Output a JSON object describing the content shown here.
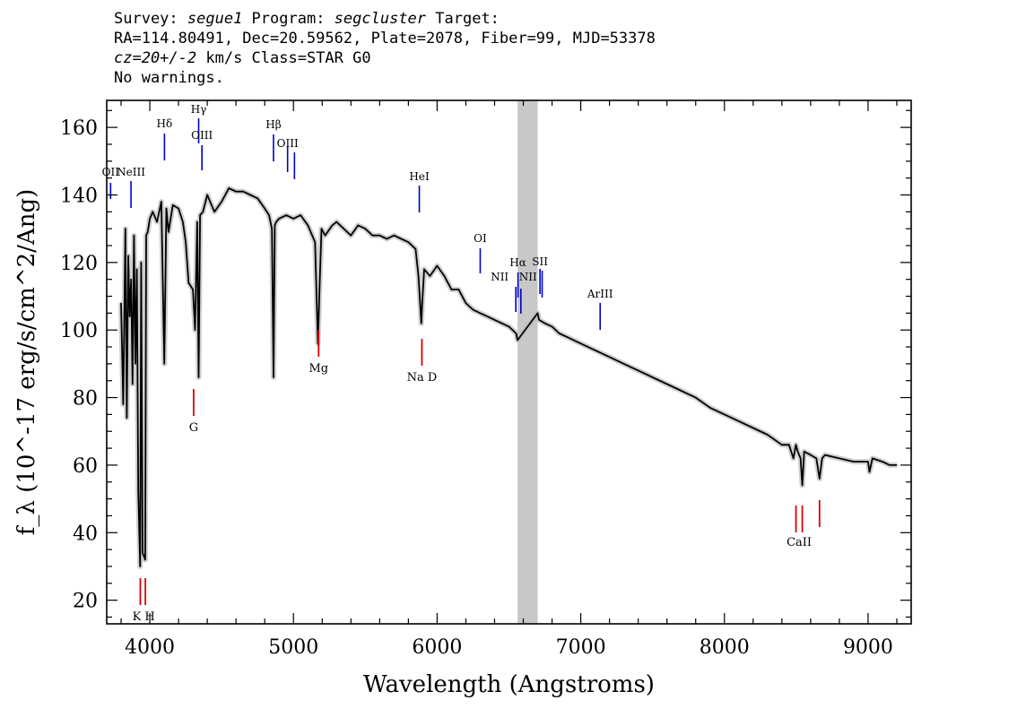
{
  "header": {
    "survey_label": "Survey: ",
    "survey": "segue1",
    "program_label": " Program: ",
    "program": "segcluster",
    "target_label": " Target:",
    "coords": "RA=114.80491, Dec=20.59562, Plate=2078, Fiber=99, MJD=53378",
    "cz": "cz=20+/-2",
    "cz_unit": " km/s ",
    "class": "Class=STAR G0",
    "warnings": "No warnings."
  },
  "chart_data": {
    "type": "line",
    "title": "",
    "xlabel": "Wavelength (Angstroms)",
    "ylabel": "f_λ (10^-17 erg/s/cm^2/Ang)",
    "xlim": [
      3700,
      9300
    ],
    "ylim": [
      13,
      168
    ],
    "xticks": [
      4000,
      5000,
      6000,
      7000,
      8000,
      9000
    ],
    "yticks": [
      20,
      40,
      60,
      80,
      100,
      120,
      140,
      160
    ],
    "grid": false,
    "masked_region": [
      6560,
      6700
    ],
    "series": [
      {
        "color": "#000000",
        "error_color": "#bbbbbb",
        "x": [
          3800,
          3815,
          3830,
          3840,
          3850,
          3860,
          3870,
          3880,
          3890,
          3900,
          3910,
          3920,
          3933,
          3940,
          3950,
          3968,
          3975,
          3985,
          4000,
          4020,
          4050,
          4080,
          4101,
          4115,
          4130,
          4160,
          4200,
          4230,
          4250,
          4270,
          4300,
          4315,
          4330,
          4340,
          4350,
          4370,
          4400,
          4450,
          4500,
          4550,
          4600,
          4650,
          4700,
          4750,
          4800,
          4830,
          4850,
          4861,
          4870,
          4880,
          4900,
          4950,
          5000,
          5050,
          5100,
          5150,
          5170,
          5183,
          5195,
          5220,
          5270,
          5300,
          5350,
          5400,
          5450,
          5500,
          5550,
          5600,
          5650,
          5700,
          5750,
          5800,
          5850,
          5870,
          5890,
          5896,
          5910,
          5950,
          6000,
          6050,
          6100,
          6150,
          6200,
          6250,
          6300,
          6350,
          6400,
          6450,
          6500,
          6550,
          6560,
          6700,
          6710,
          6750,
          6800,
          6850,
          6900,
          7000,
          7100,
          7200,
          7300,
          7400,
          7500,
          7600,
          7700,
          7800,
          7900,
          8000,
          8100,
          8200,
          8300,
          8400,
          8450,
          8480,
          8498,
          8510,
          8530,
          8542,
          8555,
          8600,
          8640,
          8662,
          8680,
          8700,
          8800,
          8900,
          9000,
          9010,
          9030,
          9100,
          9150,
          9200
        ],
        "y": [
          108,
          78,
          130,
          74,
          122,
          104,
          115,
          84,
          128,
          90,
          118,
          52,
          30,
          120,
          34,
          32,
          128,
          129,
          133,
          135,
          132,
          138,
          90,
          136,
          129,
          137,
          136,
          132,
          126,
          114,
          112,
          100,
          132,
          86,
          134,
          135,
          140,
          135,
          138,
          142,
          141,
          141,
          140,
          139,
          136,
          134,
          130,
          86,
          131,
          132,
          133,
          134,
          133,
          134,
          131,
          126,
          96,
          114,
          130,
          128,
          131,
          132,
          130,
          128,
          131,
          130,
          128,
          128,
          127,
          128,
          127,
          126,
          124,
          116,
          102,
          108,
          118,
          116,
          119,
          116,
          112,
          112,
          108,
          106,
          105,
          104,
          103,
          102,
          101,
          99,
          97,
          105,
          103,
          102,
          101,
          99,
          98,
          96,
          94,
          92,
          90,
          88,
          86,
          84,
          82,
          80,
          77,
          75,
          73,
          71,
          69,
          66,
          66,
          62,
          66,
          64,
          62,
          54,
          64,
          63,
          62,
          56,
          62,
          63,
          62,
          61,
          61,
          58,
          62,
          61,
          60,
          60
        ]
      }
    ],
    "emission_lines": [
      {
        "label": "OII",
        "x": 3727
      },
      {
        "label": "NeIII",
        "x": 3869
      },
      {
        "label": "Hδ",
        "x": 4102
      },
      {
        "label": "Hγ",
        "x": 4340
      },
      {
        "label": "OIII",
        "x": 4363
      },
      {
        "label": "Hβ",
        "x": 4861
      },
      {
        "label": "OIII",
        "x": 4959
      },
      {
        "label": "",
        "x": 5007
      },
      {
        "label": "HeI",
        "x": 5876
      },
      {
        "label": "OI",
        "x": 6300
      },
      {
        "label": "NII",
        "x": 6548
      },
      {
        "label": "Hα",
        "x": 6563
      },
      {
        "label": "NII",
        "x": 6583
      },
      {
        "label": "SII",
        "x": 6716
      },
      {
        "label": "",
        "x": 6731
      },
      {
        "label": "ArIII",
        "x": 7135
      }
    ],
    "absorption_lines": [
      {
        "label": "K",
        "x": 3934
      },
      {
        "label": "H",
        "x": 3969
      },
      {
        "label": "G",
        "x": 4305
      },
      {
        "label": "Mg",
        "x": 5175
      },
      {
        "label": "Na D",
        "x": 5894
      },
      {
        "label": "CaII",
        "x": 8498
      },
      {
        "label": "",
        "x": 8542
      },
      {
        "label": "",
        "x": 8662
      }
    ]
  }
}
